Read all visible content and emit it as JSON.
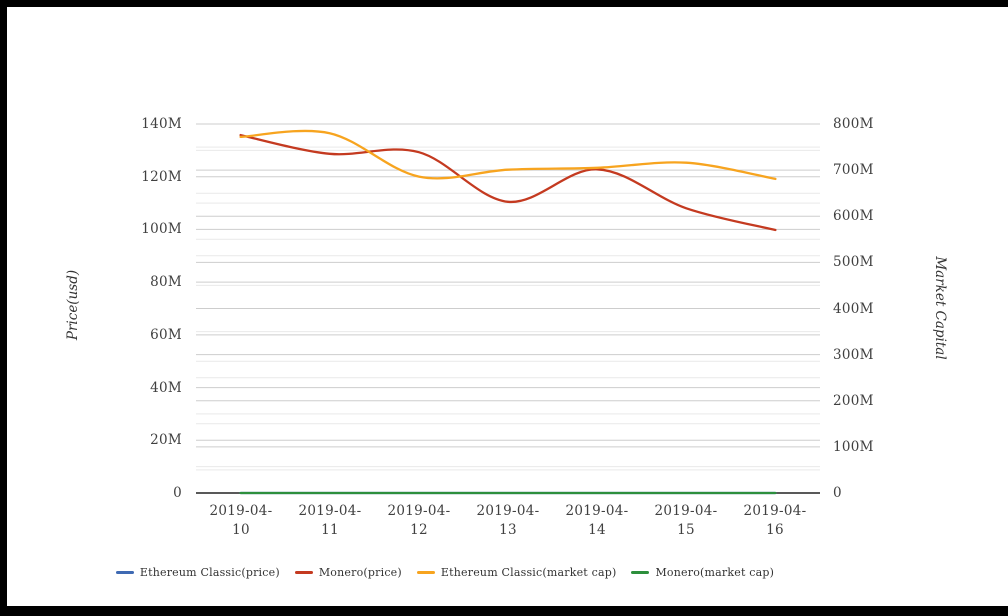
{
  "window": {
    "border_color": "#000000",
    "background": "#ffffff"
  },
  "chart_data": {
    "type": "line",
    "smooth": true,
    "grid": true,
    "legend_position": "bottom",
    "categories": [
      "2019-04-10",
      "2019-04-11",
      "2019-04-12",
      "2019-04-13",
      "2019-04-14",
      "2019-04-15",
      "2019-04-16"
    ],
    "series": [
      {
        "name": "Ethereum Classic(price)",
        "axis": "left",
        "color": "#3f6ab3",
        "values": [
          0,
          0,
          0,
          0,
          0,
          0,
          0
        ]
      },
      {
        "name": "Monero(price)",
        "axis": "left",
        "color": "#c43a20",
        "values": [
          135.8,
          128.7,
          129.3,
          110.5,
          122.8,
          108.0,
          99.8
        ]
      },
      {
        "name": "Ethereum Classic(market cap)",
        "axis": "right",
        "color": "#f7a41f",
        "values": [
          772,
          780,
          686,
          701,
          705,
          716,
          681
        ]
      },
      {
        "name": "Monero(market cap)",
        "axis": "right",
        "color": "#2d8f3c",
        "values": [
          0,
          0,
          0,
          0,
          0,
          0,
          0
        ]
      }
    ],
    "left_axis": {
      "title": "Price(usd)",
      "min": 0,
      "max": 140,
      "major_step": 20,
      "minor_step": 10,
      "unit": "M",
      "tick_labels": [
        "140M",
        "120M",
        "100M",
        "80M",
        "60M",
        "40M",
        "20M",
        "0"
      ]
    },
    "right_axis": {
      "title": "Market Capital",
      "min": 0,
      "max": 800,
      "major_step": 100,
      "minor_step": 50,
      "unit": "M",
      "tick_labels": [
        "800M",
        "700M",
        "600M",
        "500M",
        "400M",
        "300M",
        "200M",
        "100M",
        "0"
      ]
    },
    "colors": {
      "grid_major": "#cdcdcd",
      "grid_minor": "#e9e9e9",
      "axis_line": "#222222",
      "tick_text": "#404040"
    }
  }
}
